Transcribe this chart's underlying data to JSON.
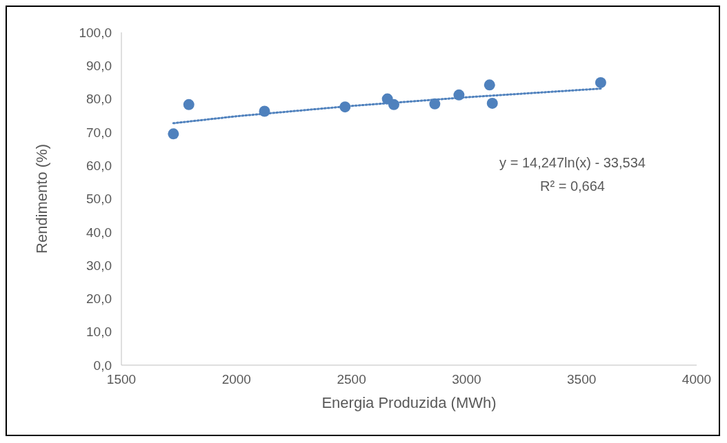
{
  "chart_data": {
    "type": "scatter",
    "xlabel": "Energia Produzida (MWh)",
    "ylabel": "Rendimento (%)",
    "xlim": [
      1500,
      4000
    ],
    "xticks": [
      1500,
      2000,
      2500,
      3000,
      3500,
      4000
    ],
    "ylim": [
      0,
      100
    ],
    "yticks": [
      {
        "value": 0,
        "label": "0,0"
      },
      {
        "value": 10,
        "label": "10,0"
      },
      {
        "value": 20,
        "label": "20,0"
      },
      {
        "value": 30,
        "label": "30,0"
      },
      {
        "value": 40,
        "label": "40,0"
      },
      {
        "value": 50,
        "label": "50,0"
      },
      {
        "value": 60,
        "label": "60,0"
      },
      {
        "value": 70,
        "label": "70,0"
      },
      {
        "value": 80,
        "label": "80,0"
      },
      {
        "value": 90,
        "label": "90,0"
      },
      {
        "value": 100,
        "label": "100,0"
      }
    ],
    "marker": "circle",
    "annotations": [
      "y = 14,247ln(x) - 33,534",
      "R² = 0,664"
    ],
    "series": [
      {
        "color": "#4f81bd",
        "x": [
          1726,
          1793,
          2122,
          2472,
          2656,
          2684,
          2862,
          2967,
          3100,
          3112,
          3583
        ],
        "values": [
          69.5,
          78.3,
          76.3,
          77.6,
          80.0,
          78.3,
          78.5,
          81.2,
          84.2,
          78.7,
          84.9
        ]
      },
      {
        "type": "line",
        "color": "#4f81bd",
        "line_style": "dotted",
        "marker": "none",
        "x": [
          1726,
          2000,
          2500,
          3000,
          3583
        ],
        "values": [
          72.7,
          74.8,
          77.9,
          80.5,
          83.1
        ]
      }
    ]
  }
}
